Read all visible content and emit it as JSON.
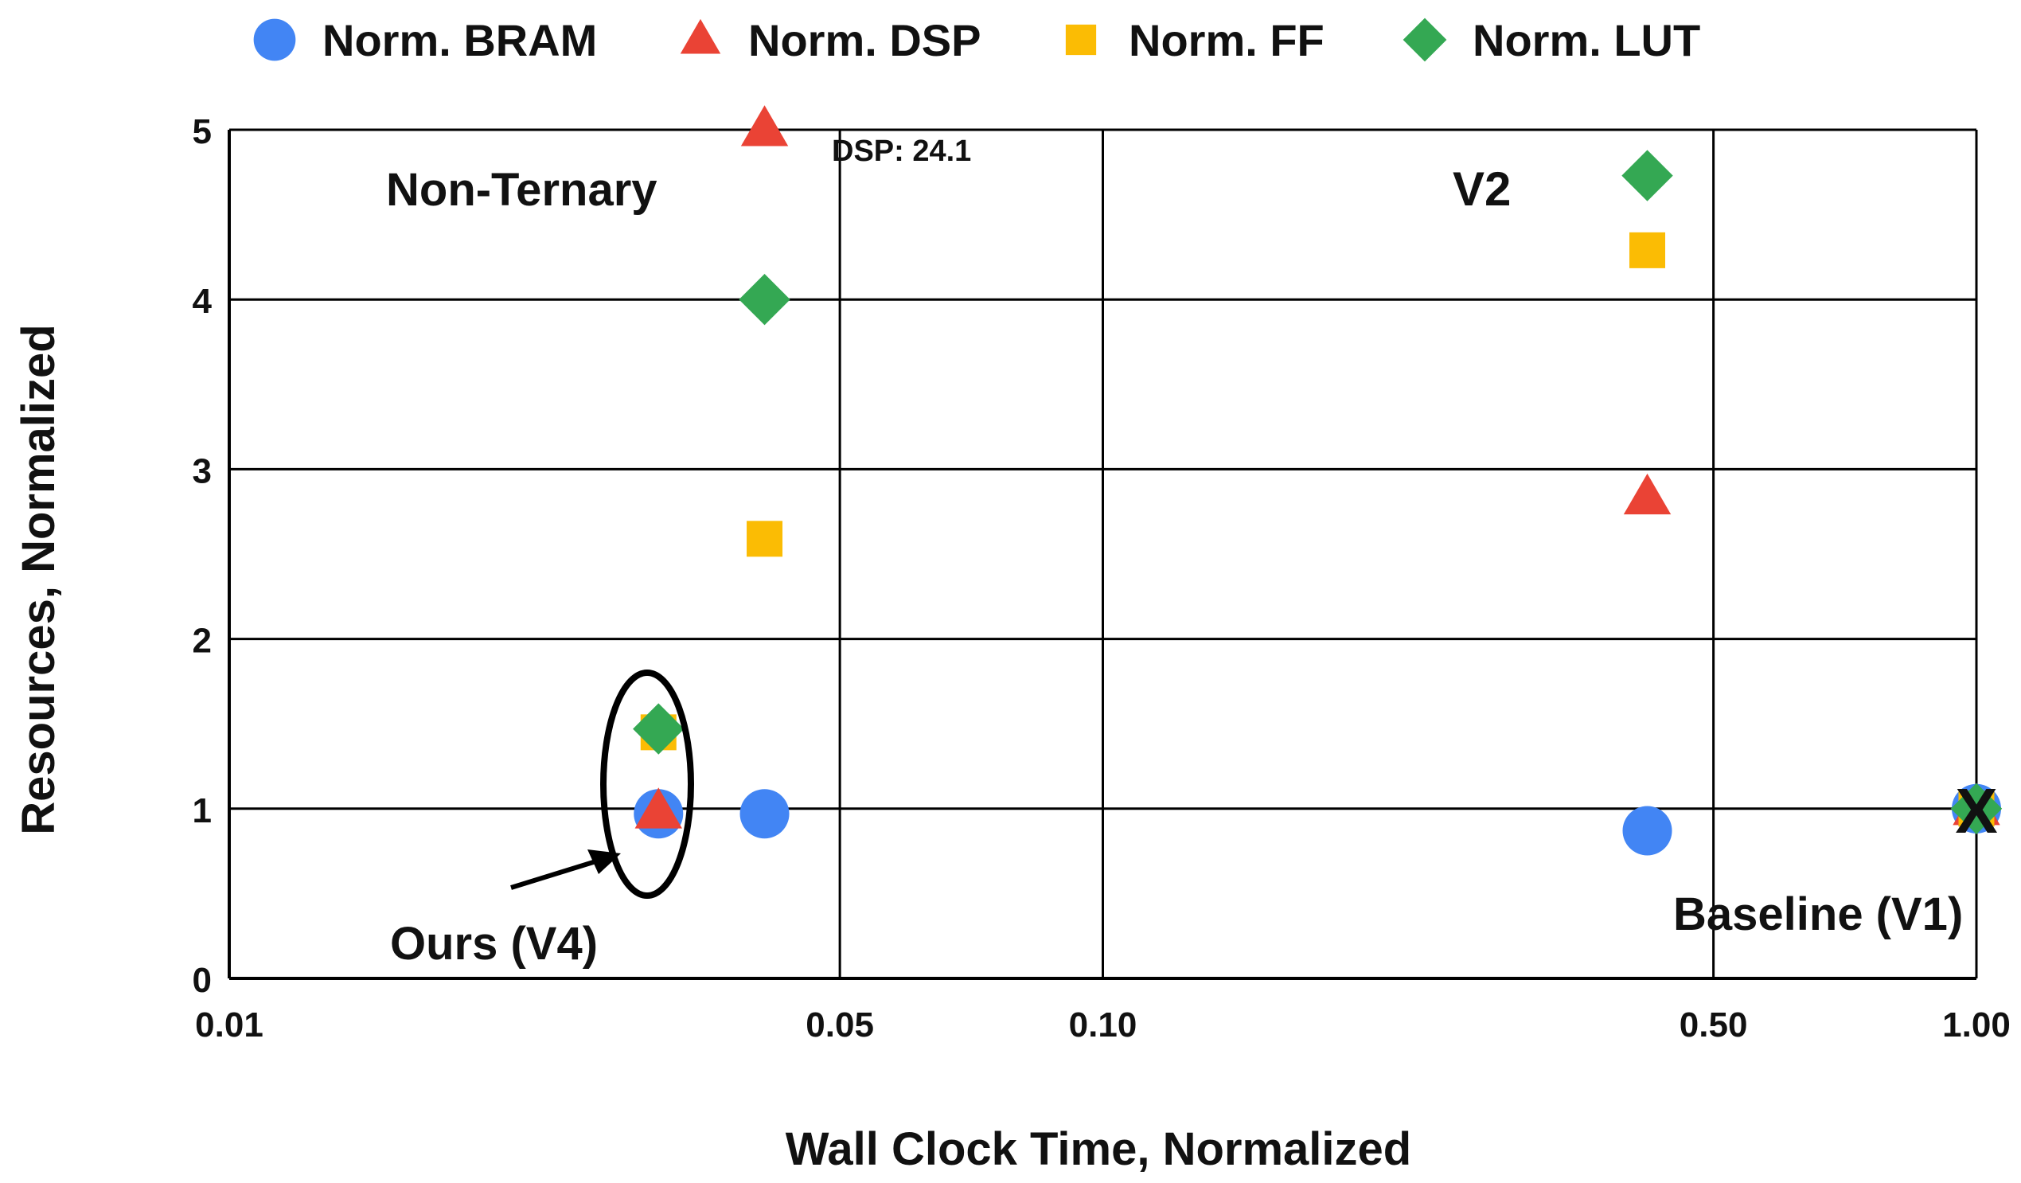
{
  "chart_data": {
    "type": "scatter",
    "title": "",
    "xlabel": "Wall Clock Time, Normalized",
    "ylabel": "Resources, Normalized",
    "x_scale": "log",
    "xlim": [
      0.01,
      1.0
    ],
    "ylim": [
      0,
      5
    ],
    "x_ticks": [
      0.01,
      0.05,
      0.1,
      0.5,
      1.0
    ],
    "x_tick_labels": [
      "0.01",
      "0.05",
      "0.10",
      "0.50",
      "1.00"
    ],
    "y_ticks": [
      0,
      1,
      2,
      3,
      4,
      5
    ],
    "y_tick_labels": [
      "0",
      "1",
      "2",
      "3",
      "4",
      "5"
    ],
    "grid": true,
    "legend_position": "top",
    "series": [
      {
        "name": "Norm. BRAM",
        "marker": "circle",
        "color": "#4285F4",
        "points": [
          [
            0.031,
            0.97
          ],
          [
            0.041,
            0.97
          ],
          [
            0.42,
            0.87
          ],
          [
            1.0,
            1.0
          ]
        ]
      },
      {
        "name": "Norm. DSP",
        "marker": "triangle",
        "color": "#EA4335",
        "points": [
          [
            0.031,
            0.98
          ],
          [
            0.041,
            5.0
          ],
          [
            0.42,
            2.83
          ],
          [
            1.0,
            1.0
          ]
        ]
      },
      {
        "name": "Norm. FF",
        "marker": "square",
        "color": "#FBBC04",
        "points": [
          [
            0.031,
            1.45
          ],
          [
            0.041,
            2.59
          ],
          [
            0.42,
            4.29
          ],
          [
            1.0,
            1.0
          ]
        ]
      },
      {
        "name": "Norm. LUT",
        "marker": "diamond",
        "color": "#34A853",
        "points": [
          [
            0.031,
            1.47
          ],
          [
            0.041,
            4.0
          ],
          [
            0.42,
            4.73
          ],
          [
            1.0,
            1.0
          ]
        ]
      }
    ],
    "annotations": {
      "non_ternary": "Non-Ternary",
      "dsp_clip": "DSP: 24.1",
      "v2": "V2",
      "baseline": "Baseline (V1)",
      "baseline_mark": "X",
      "ours": "Ours (V4)"
    }
  }
}
